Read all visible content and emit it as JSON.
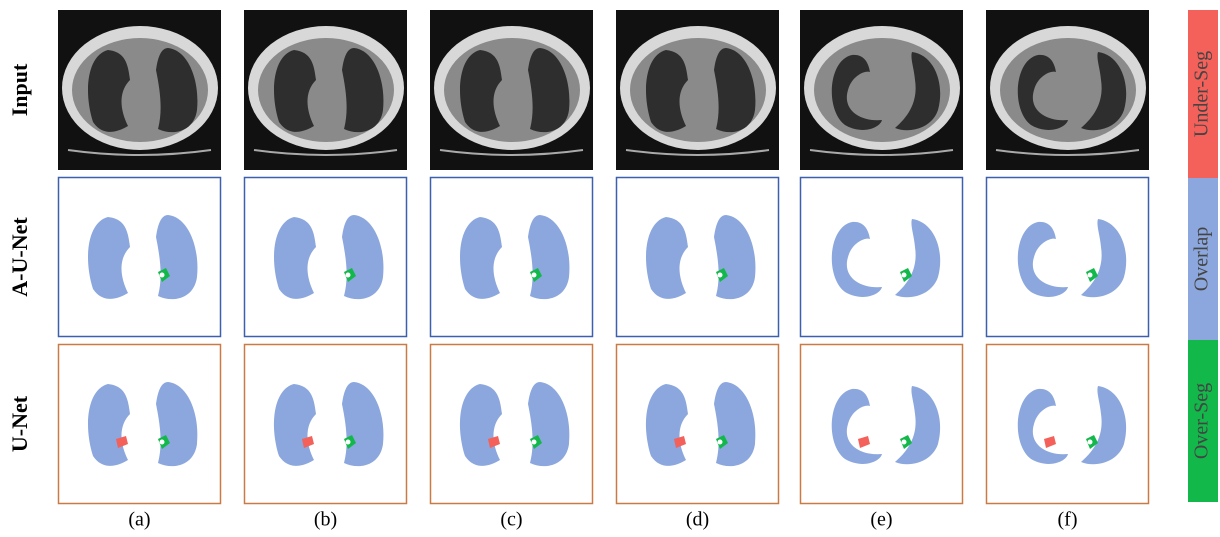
{
  "figure": {
    "row_labels": [
      "Input",
      "A-U-Net",
      "U-Net"
    ],
    "column_labels": [
      "(a)",
      "(b)",
      "(c)",
      "(d)",
      "(e)",
      "(f)"
    ],
    "legend": [
      {
        "label": "Under-Seg",
        "color": "#f4605a"
      },
      {
        "label": "Overlap",
        "color": "#8ba7dd"
      },
      {
        "label": "Over-Seg",
        "color": "#12b84a"
      }
    ]
  }
}
